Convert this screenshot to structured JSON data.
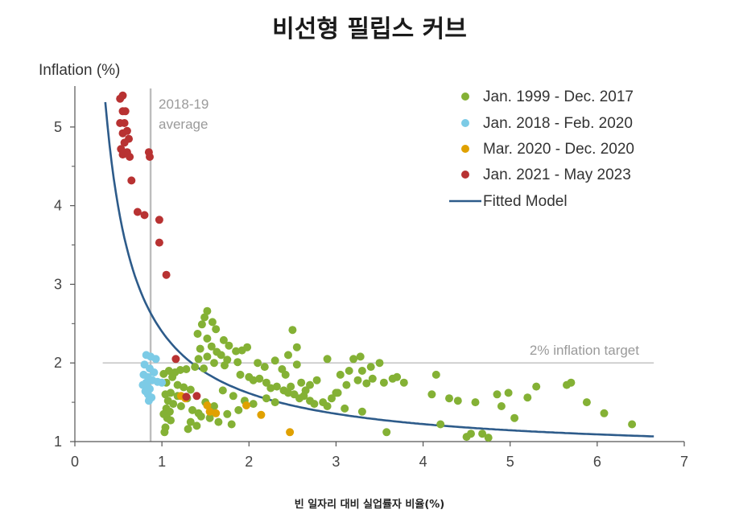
{
  "chart_data": {
    "type": "scatter",
    "title": "비선형 필립스 커브",
    "xlabel": "빈 일자리 대비 실업률자 비율(%)",
    "ylabel": "Inflation (%)",
    "xlim": [
      0,
      7
    ],
    "ylim": [
      1,
      5.5
    ],
    "xticks": [
      0,
      1,
      2,
      3,
      4,
      5,
      6,
      7
    ],
    "yticks": [
      1,
      2,
      3,
      4,
      5
    ],
    "legend_position": "top-right",
    "colors": {
      "green": "#84b135",
      "blue": "#7ccbe6",
      "orange": "#e0a100",
      "red": "#b83232",
      "curve": "#2d5b8a",
      "refline": "#bdbdbd"
    },
    "annotations": {
      "average_label": [
        "2018-19",
        "average"
      ],
      "average_x": 0.87,
      "target_label": "2% inflation target",
      "target_y": 2
    },
    "fitted_model": {
      "name": "Fitted Model",
      "form": "y = 0.83 + 1.57 / x",
      "a": 0.83,
      "b": 1.57,
      "x_range": [
        0.35,
        6.65
      ]
    },
    "series": [
      {
        "name": "Jan. 1999 - Dec. 2017",
        "color": "#84b135",
        "points": [
          [
            1.52,
            2.66
          ],
          [
            1.49,
            2.58
          ],
          [
            1.58,
            2.52
          ],
          [
            1.46,
            2.49
          ],
          [
            1.41,
            2.37
          ],
          [
            1.62,
            2.43
          ],
          [
            1.71,
            2.29
          ],
          [
            1.52,
            2.31
          ],
          [
            1.57,
            2.21
          ],
          [
            1.44,
            2.18
          ],
          [
            1.77,
            2.22
          ],
          [
            1.85,
            2.15
          ],
          [
            1.63,
            2.14
          ],
          [
            1.68,
            2.1
          ],
          [
            1.92,
            2.16
          ],
          [
            1.98,
            2.2
          ],
          [
            1.52,
            2.08
          ],
          [
            1.42,
            2.05
          ],
          [
            1.75,
            2.04
          ],
          [
            1.87,
            2.01
          ],
          [
            1.6,
            2.0
          ],
          [
            1.72,
            1.97
          ],
          [
            1.48,
            1.93
          ],
          [
            1.38,
            1.95
          ],
          [
            1.28,
            1.92
          ],
          [
            1.21,
            1.91
          ],
          [
            1.15,
            1.88
          ],
          [
            1.08,
            1.9
          ],
          [
            1.02,
            1.86
          ],
          [
            1.12,
            1.82
          ],
          [
            1.05,
            1.75
          ],
          [
            1.18,
            1.72
          ],
          [
            1.25,
            1.69
          ],
          [
            1.33,
            1.66
          ],
          [
            1.1,
            1.62
          ],
          [
            1.04,
            1.6
          ],
          [
            1.18,
            1.58
          ],
          [
            1.29,
            1.55
          ],
          [
            1.07,
            1.52
          ],
          [
            1.13,
            1.48
          ],
          [
            1.22,
            1.45
          ],
          [
            1.05,
            1.42
          ],
          [
            1.09,
            1.38
          ],
          [
            1.35,
            1.4
          ],
          [
            1.42,
            1.36
          ],
          [
            1.02,
            1.35
          ],
          [
            1.06,
            1.3
          ],
          [
            1.1,
            1.27
          ],
          [
            1.33,
            1.25
          ],
          [
            1.4,
            1.2
          ],
          [
            1.3,
            1.16
          ],
          [
            1.04,
            1.18
          ],
          [
            1.03,
            1.12
          ],
          [
            1.9,
            1.85
          ],
          [
            2.0,
            1.82
          ],
          [
            2.05,
            1.78
          ],
          [
            2.12,
            1.8
          ],
          [
            2.2,
            1.75
          ],
          [
            2.25,
            1.68
          ],
          [
            2.32,
            1.7
          ],
          [
            2.4,
            1.65
          ],
          [
            2.45,
            1.62
          ],
          [
            2.52,
            1.6
          ],
          [
            2.58,
            1.55
          ],
          [
            2.63,
            1.58
          ],
          [
            2.7,
            1.52
          ],
          [
            2.75,
            1.48
          ],
          [
            2.85,
            1.5
          ],
          [
            2.95,
            1.55
          ],
          [
            3.0,
            1.62
          ],
          [
            2.9,
            1.45
          ],
          [
            3.1,
            1.42
          ],
          [
            2.2,
            1.55
          ],
          [
            2.3,
            1.5
          ],
          [
            2.1,
            2.0
          ],
          [
            2.18,
            1.95
          ],
          [
            2.3,
            2.03
          ],
          [
            2.38,
            1.92
          ],
          [
            2.45,
            2.1
          ],
          [
            2.55,
            1.98
          ],
          [
            2.5,
            2.42
          ],
          [
            2.55,
            2.2
          ],
          [
            2.42,
            1.85
          ],
          [
            2.6,
            1.75
          ],
          [
            2.7,
            1.72
          ],
          [
            2.78,
            1.78
          ],
          [
            2.48,
            1.7
          ],
          [
            2.65,
            1.65
          ],
          [
            1.7,
            1.65
          ],
          [
            1.82,
            1.58
          ],
          [
            1.95,
            1.52
          ],
          [
            2.05,
            1.48
          ],
          [
            1.88,
            1.4
          ],
          [
            1.75,
            1.35
          ],
          [
            1.6,
            1.45
          ],
          [
            1.5,
            1.5
          ],
          [
            1.55,
            1.3
          ],
          [
            1.65,
            1.25
          ],
          [
            1.45,
            1.32
          ],
          [
            1.8,
            1.22
          ],
          [
            3.2,
            2.05
          ],
          [
            3.28,
            2.08
          ],
          [
            3.15,
            1.9
          ],
          [
            3.05,
            1.85
          ],
          [
            3.25,
            1.78
          ],
          [
            3.35,
            1.74
          ],
          [
            3.42,
            1.8
          ],
          [
            3.12,
            1.72
          ],
          [
            3.02,
            1.62
          ],
          [
            3.3,
            1.9
          ],
          [
            3.4,
            1.95
          ],
          [
            3.5,
            2.0
          ],
          [
            2.9,
            2.05
          ],
          [
            3.65,
            1.8
          ],
          [
            3.55,
            1.75
          ],
          [
            3.78,
            1.75
          ],
          [
            3.7,
            1.82
          ],
          [
            3.3,
            1.38
          ],
          [
            3.58,
            1.12
          ],
          [
            4.15,
            1.85
          ],
          [
            4.3,
            1.55
          ],
          [
            4.1,
            1.6
          ],
          [
            4.4,
            1.52
          ],
          [
            4.2,
            1.22
          ],
          [
            4.55,
            1.1
          ],
          [
            4.5,
            1.06
          ],
          [
            4.68,
            1.1
          ],
          [
            4.75,
            1.05
          ],
          [
            4.6,
            1.5
          ],
          [
            4.85,
            1.6
          ],
          [
            4.9,
            1.45
          ],
          [
            4.98,
            1.62
          ],
          [
            5.05,
            1.3
          ],
          [
            5.2,
            1.56
          ],
          [
            5.3,
            1.7
          ],
          [
            5.65,
            1.72
          ],
          [
            5.7,
            1.75
          ],
          [
            5.88,
            1.5
          ],
          [
            6.08,
            1.36
          ],
          [
            6.4,
            1.22
          ]
        ]
      },
      {
        "name": "Jan. 2018 - Feb. 2020",
        "color": "#7ccbe6",
        "points": [
          [
            0.82,
            2.1
          ],
          [
            0.87,
            2.08
          ],
          [
            0.93,
            2.05
          ],
          [
            0.8,
            1.98
          ],
          [
            0.86,
            1.93
          ],
          [
            0.91,
            1.88
          ],
          [
            0.79,
            1.85
          ],
          [
            0.84,
            1.82
          ],
          [
            0.89,
            1.78
          ],
          [
            0.95,
            1.76
          ],
          [
            1.0,
            1.75
          ],
          [
            0.78,
            1.72
          ],
          [
            0.83,
            1.7
          ],
          [
            0.86,
            1.67
          ],
          [
            0.81,
            1.64
          ],
          [
            0.84,
            1.6
          ],
          [
            0.88,
            1.56
          ],
          [
            0.85,
            1.52
          ],
          [
            0.82,
            1.75
          ]
        ]
      },
      {
        "name": "Mar. 2020 - Dec. 2020",
        "color": "#e0a100",
        "points": [
          [
            1.22,
            1.58
          ],
          [
            1.27,
            1.55
          ],
          [
            1.52,
            1.46
          ],
          [
            1.55,
            1.38
          ],
          [
            1.62,
            1.36
          ],
          [
            1.97,
            1.46
          ],
          [
            2.14,
            1.34
          ],
          [
            2.47,
            1.12
          ]
        ]
      },
      {
        "name": "Jan. 2021 - May 2023",
        "color": "#b83232",
        "points": [
          [
            0.55,
            5.4
          ],
          [
            0.52,
            5.36
          ],
          [
            0.58,
            5.2
          ],
          [
            0.55,
            5.2
          ],
          [
            0.52,
            5.05
          ],
          [
            0.57,
            5.05
          ],
          [
            0.6,
            4.95
          ],
          [
            0.55,
            4.92
          ],
          [
            0.62,
            4.85
          ],
          [
            0.57,
            4.8
          ],
          [
            0.53,
            4.72
          ],
          [
            0.6,
            4.68
          ],
          [
            0.55,
            4.65
          ],
          [
            0.63,
            4.62
          ],
          [
            0.85,
            4.68
          ],
          [
            0.86,
            4.62
          ],
          [
            0.65,
            4.32
          ],
          [
            0.72,
            3.92
          ],
          [
            0.8,
            3.88
          ],
          [
            0.97,
            3.82
          ],
          [
            0.97,
            3.53
          ],
          [
            1.05,
            3.12
          ],
          [
            1.16,
            2.05
          ],
          [
            1.28,
            1.57
          ],
          [
            1.4,
            1.58
          ]
        ]
      }
    ]
  }
}
